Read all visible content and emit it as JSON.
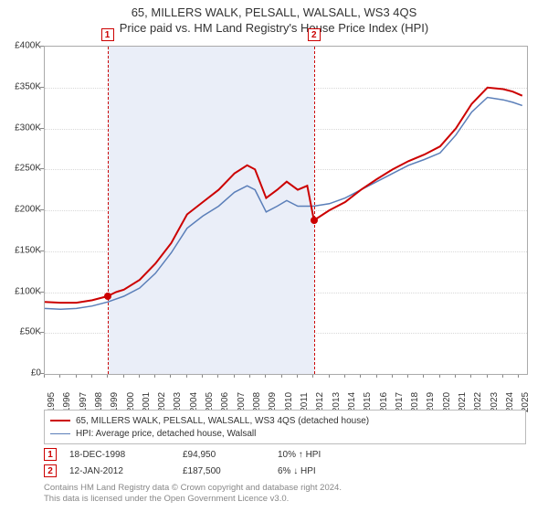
{
  "title": {
    "line1": "65, MILLERS WALK, PELSALL, WALSALL, WS3 4QS",
    "line2": "Price paid vs. HM Land Registry's House Price Index (HPI)",
    "fontsize": 13,
    "color": "#333333"
  },
  "chart": {
    "type": "line",
    "background_color": "#ffffff",
    "border_color": "#aaaaaa",
    "grid_color": "#d8d8d8",
    "shade_band_color": "#eaeef8",
    "x": {
      "min": 1995,
      "max": 2025.5,
      "ticks": [
        1995,
        1996,
        1997,
        1998,
        1999,
        2000,
        2001,
        2002,
        2003,
        2004,
        2005,
        2006,
        2007,
        2008,
        2009,
        2010,
        2011,
        2012,
        2013,
        2014,
        2015,
        2016,
        2017,
        2018,
        2019,
        2020,
        2021,
        2022,
        2023,
        2024,
        2025
      ],
      "tick_fontsize": 10,
      "tick_rotation_deg": -90
    },
    "y": {
      "min": 0,
      "max": 400000,
      "ticks": [
        0,
        50000,
        100000,
        150000,
        200000,
        250000,
        300000,
        350000,
        400000
      ],
      "tick_labels": [
        "£0",
        "£50K",
        "£100K",
        "£150K",
        "£200K",
        "£250K",
        "£300K",
        "£350K",
        "£400K"
      ],
      "tick_fontsize": 10
    },
    "series": [
      {
        "id": "price_paid",
        "label": "65, MILLERS WALK, PELSALL, WALSALL, WS3 4QS (detached house)",
        "color": "#cc0000",
        "line_width": 2,
        "points": [
          [
            1995.0,
            88000
          ],
          [
            1996.0,
            87000
          ],
          [
            1997.0,
            87000
          ],
          [
            1998.0,
            90000
          ],
          [
            1998.96,
            94950
          ],
          [
            1999.5,
            100000
          ],
          [
            2000.0,
            103000
          ],
          [
            2001.0,
            115000
          ],
          [
            2002.0,
            135000
          ],
          [
            2003.0,
            160000
          ],
          [
            2004.0,
            195000
          ],
          [
            2005.0,
            210000
          ],
          [
            2006.0,
            225000
          ],
          [
            2007.0,
            245000
          ],
          [
            2007.8,
            255000
          ],
          [
            2008.3,
            250000
          ],
          [
            2009.0,
            215000
          ],
          [
            2009.7,
            225000
          ],
          [
            2010.3,
            235000
          ],
          [
            2011.0,
            225000
          ],
          [
            2011.6,
            230000
          ],
          [
            2012.03,
            187500
          ],
          [
            2012.2,
            190000
          ],
          [
            2013.0,
            200000
          ],
          [
            2014.0,
            210000
          ],
          [
            2015.0,
            225000
          ],
          [
            2016.0,
            238000
          ],
          [
            2017.0,
            250000
          ],
          [
            2018.0,
            260000
          ],
          [
            2019.0,
            268000
          ],
          [
            2020.0,
            278000
          ],
          [
            2021.0,
            300000
          ],
          [
            2022.0,
            330000
          ],
          [
            2023.0,
            350000
          ],
          [
            2024.0,
            348000
          ],
          [
            2024.6,
            345000
          ],
          [
            2025.2,
            340000
          ]
        ]
      },
      {
        "id": "hpi",
        "label": "HPI: Average price, detached house, Walsall",
        "color": "#5b7fb9",
        "line_width": 1.5,
        "points": [
          [
            1995.0,
            80000
          ],
          [
            1996.0,
            79000
          ],
          [
            1997.0,
            80000
          ],
          [
            1998.0,
            83000
          ],
          [
            1999.0,
            88000
          ],
          [
            2000.0,
            95000
          ],
          [
            2001.0,
            105000
          ],
          [
            2002.0,
            123000
          ],
          [
            2003.0,
            148000
          ],
          [
            2004.0,
            178000
          ],
          [
            2005.0,
            193000
          ],
          [
            2006.0,
            205000
          ],
          [
            2007.0,
            222000
          ],
          [
            2007.8,
            230000
          ],
          [
            2008.3,
            225000
          ],
          [
            2009.0,
            198000
          ],
          [
            2009.7,
            205000
          ],
          [
            2010.3,
            212000
          ],
          [
            2011.0,
            205000
          ],
          [
            2012.0,
            205000
          ],
          [
            2013.0,
            208000
          ],
          [
            2014.0,
            215000
          ],
          [
            2015.0,
            225000
          ],
          [
            2016.0,
            235000
          ],
          [
            2017.0,
            245000
          ],
          [
            2018.0,
            255000
          ],
          [
            2019.0,
            262000
          ],
          [
            2020.0,
            270000
          ],
          [
            2021.0,
            292000
          ],
          [
            2022.0,
            320000
          ],
          [
            2023.0,
            338000
          ],
          [
            2024.0,
            335000
          ],
          [
            2024.6,
            332000
          ],
          [
            2025.2,
            328000
          ]
        ]
      }
    ],
    "sale_markers": [
      {
        "index": "1",
        "x": 1998.96,
        "y": 94950,
        "dash_color": "#cc0000",
        "dot_color": "#cc0000"
      },
      {
        "index": "2",
        "x": 2012.03,
        "y": 187500,
        "dash_color": "#cc0000",
        "dot_color": "#cc0000"
      }
    ],
    "shade_band": {
      "x_from": 1998.96,
      "x_to": 2012.03
    }
  },
  "legend": {
    "border_color": "#bbbbbb",
    "fontsize": 10,
    "items": [
      {
        "color": "#cc0000",
        "width": 2,
        "label": "65, MILLERS WALK, PELSALL, WALSALL, WS3 4QS (detached house)"
      },
      {
        "color": "#5b7fb9",
        "width": 1.5,
        "label": "HPI: Average price, detached house, Walsall"
      }
    ]
  },
  "sales": [
    {
      "index": "1",
      "date": "18-DEC-1998",
      "price": "£94,950",
      "delta": "10% ↑ HPI"
    },
    {
      "index": "2",
      "date": "12-JAN-2012",
      "price": "£187,500",
      "delta": "6% ↓ HPI"
    }
  ],
  "footer": {
    "line1": "Contains HM Land Registry data © Crown copyright and database right 2024.",
    "line2": "This data is licensed under the Open Government Licence v3.0.",
    "color": "#888888",
    "fontsize": 9.5
  }
}
